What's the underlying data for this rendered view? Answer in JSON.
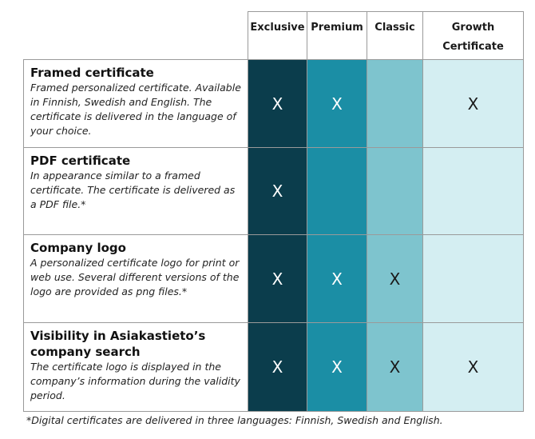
{
  "columns": [
    {
      "key": "exclusive",
      "label": "Exclusive"
    },
    {
      "key": "premium",
      "label": "Premium"
    },
    {
      "key": "classic",
      "label": "Classic"
    },
    {
      "key": "growth",
      "label_line1": "Growth",
      "label_line2": "Certificate"
    }
  ],
  "rows": [
    {
      "title": "Framed certificate",
      "description": "Framed personalized certificate. Available in Finnish, Swedish and English. The certificate is delivered in the language of your choice.",
      "marks": {
        "exclusive": "X",
        "premium": "X",
        "classic": "",
        "growth": "X"
      }
    },
    {
      "title": "PDF certificate",
      "description": "In appearance similar to a framed certificate. The certificate is delivered as a PDF file.*",
      "marks": {
        "exclusive": "X",
        "premium": "",
        "classic": "",
        "growth": ""
      }
    },
    {
      "title": "Company logo",
      "description": "A personalized certificate logo for print or web use. Several different versions of the logo are provided as png files.*",
      "marks": {
        "exclusive": "X",
        "premium": "X",
        "classic": "X",
        "growth": ""
      }
    },
    {
      "title": "Visibility in Asiakastieto’s company search",
      "description": "The certificate logo is displayed in the company’s information during the validity period.",
      "marks": {
        "exclusive": "X",
        "premium": "X",
        "classic": "X",
        "growth": "X"
      }
    }
  ],
  "footnote": "*Digital certificates are delivered in three languages: Finnish, Swedish and English.",
  "colors": {
    "exclusive": "#0b3d4c",
    "premium": "#1b8ea5",
    "classic": "#7ec4ce",
    "growth": "#d4eef2"
  }
}
